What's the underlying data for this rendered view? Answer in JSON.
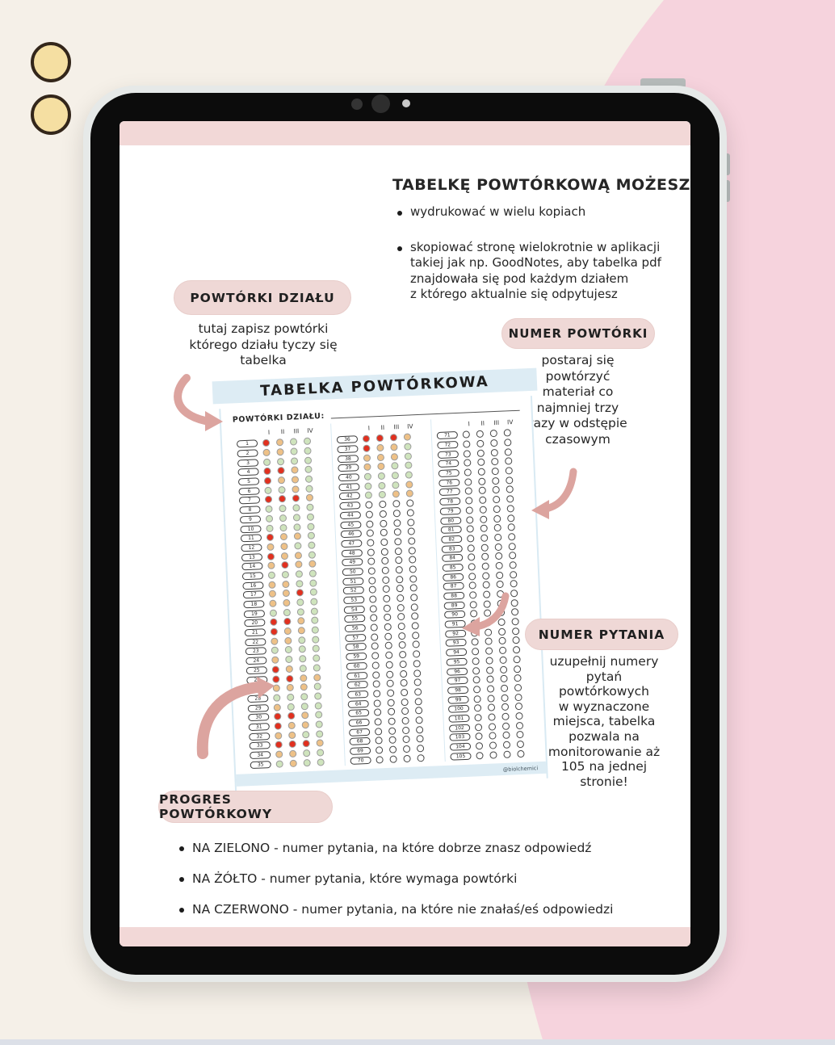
{
  "intro": {
    "title": "TABELKĘ POWTÓRKOWĄ MOŻESZ:",
    "bullets": [
      "wydrukować w wielu kopiach",
      "skopiować stronę wielokrotnie w aplikacji\ntakiej jak np. GoodNotes, aby tabelka pdf\nznajdowała się pod każdym działem\nz którego aktualnie się odpytujesz"
    ]
  },
  "callouts": [
    {
      "label": "POWTÓRKI DZIAŁU",
      "note": "tutaj zapisz powtórki\nktórego działu tyczy się\ntabelka"
    },
    {
      "label": "NUMER POWTÓRKI",
      "note": "postaraj się\npowtórzyć\nmateriał co\nnajmniej trzy\nrazy w odstępie\nczasowym"
    },
    {
      "label": "NUMER PYTANIA",
      "note": "uzupełnij numery\npytań\npowtórkowych\nw wyznaczone\nmiejsca, tabelka\npozwala na\nmonitorowanie aż\n105 na jednej\nstronie!"
    },
    {
      "label": "PROGRES POWTÓRKOWY",
      "note": ""
    }
  ],
  "legend": {
    "bullets": [
      "NA ZIELONO - numer pytania, na które dobrze znasz odpowiedź",
      "NA ŻÓŁTO - numer pytania, które wymaga powtórki",
      "NA CZERWONO - numer pytania, na które nie znałaś/eś odpowiedzi"
    ]
  },
  "table": {
    "title": "TABELKA POWTÓRKOWA",
    "section_label": "POWTÓRKI DZIAŁU:",
    "column_headers": [
      "I",
      "II",
      "III",
      "IV"
    ],
    "watermark": "@biolchemici",
    "dot_colors": {
      "R": "#e1301f",
      "O": "#eec187",
      "G": "#cfe4bd",
      "W": "#ffffff"
    },
    "columns": [
      {
        "numbers": [
          1,
          2,
          3,
          4,
          5,
          6,
          7,
          8,
          9,
          10,
          11,
          12,
          13,
          14,
          15,
          16,
          17,
          18,
          19,
          20,
          21,
          22,
          23,
          24,
          25,
          26,
          27,
          28,
          29,
          30,
          31,
          32,
          33,
          34,
          35
        ],
        "dots": [
          "ROGG",
          "OOGG",
          "GGGG",
          "RROG",
          "ROOG",
          "GGOG",
          "RRRO",
          "GGGG",
          "GGGG",
          "GGGG",
          "ROOG",
          "OOGG",
          "ROOG",
          "OROO",
          "GGGG",
          "OOGG",
          "OORG",
          "OOGG",
          "GGGG",
          "RROG",
          "ROOG",
          "OOGG",
          "GGGG",
          "OGGG",
          "ROGG",
          "RROO",
          "OOOG",
          "GGGG",
          "OGGG",
          "RROG",
          "ROOG",
          "OOGG",
          "RRRO",
          "OOGG",
          "GOGG"
        ]
      },
      {
        "numbers": [
          36,
          37,
          38,
          39,
          40,
          41,
          42,
          43,
          44,
          45,
          46,
          47,
          48,
          49,
          50,
          51,
          52,
          53,
          54,
          55,
          56,
          57,
          58,
          59,
          60,
          61,
          62,
          63,
          64,
          65,
          66,
          67,
          68,
          69,
          70
        ],
        "dots": [
          "RRRO",
          "ROOG",
          "OOOG",
          "OOGG",
          "GGGG",
          "GGGO",
          "GGOO",
          "WWWW",
          "WWWW",
          "WWWW",
          "WWWW",
          "WWWW",
          "WWWW",
          "WWWW",
          "WWWW",
          "WWWW",
          "WWWW",
          "WWWW",
          "WWWW",
          "WWWW",
          "WWWW",
          "WWWW",
          "WWWW",
          "WWWW",
          "WWWW",
          "WWWW",
          "WWWW",
          "WWWW",
          "WWWW",
          "WWWW",
          "WWWW",
          "WWWW",
          "WWWW",
          "WWWW",
          "WWWW"
        ]
      },
      {
        "numbers": [
          71,
          72,
          73,
          74,
          75,
          76,
          77,
          78,
          79,
          80,
          81,
          82,
          83,
          84,
          85,
          86,
          87,
          88,
          89,
          90,
          91,
          92,
          93,
          94,
          95,
          96,
          97,
          98,
          99,
          100,
          101,
          102,
          103,
          104,
          105
        ],
        "dots": [
          "WWWW",
          "WWWW",
          "WWWW",
          "WWWW",
          "WWWW",
          "WWWW",
          "WWWW",
          "WWWW",
          "WWWW",
          "WWWW",
          "WWWW",
          "WWWW",
          "WWWW",
          "WWWW",
          "WWWW",
          "WWWW",
          "WWWW",
          "WWWW",
          "WWWW",
          "WWWW",
          "WWWW",
          "WWWW",
          "WWWW",
          "WWWW",
          "WWWW",
          "WWWW",
          "WWWW",
          "WWWW",
          "WWWW",
          "WWWW",
          "WWWW",
          "WWWW",
          "WWWW",
          "WWWW",
          "WWWW"
        ]
      }
    ]
  },
  "colors": {
    "background": "#f5f0e8",
    "blob_pink": "#f6d3dd",
    "screen_strip_pink": "#f2d8d7",
    "pill_pink": "#efd8d6",
    "banner_blue": "#ddecf4",
    "arrow_salmon": "#dca49f",
    "dot_red": "#e1301f",
    "dot_yellow": "#eec187",
    "dot_green": "#cfe4bd"
  }
}
